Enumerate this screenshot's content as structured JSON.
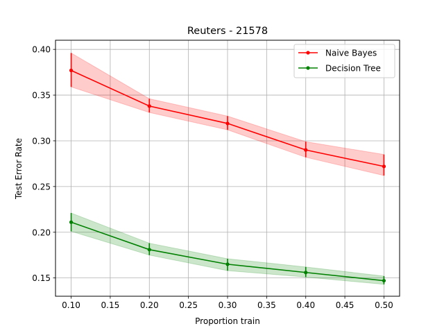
{
  "chart_data": {
    "type": "line",
    "title": "Reuters - 21578",
    "xlabel": "Proportion train",
    "ylabel": "Test Error Rate",
    "xlim": [
      0.08,
      0.52
    ],
    "ylim": [
      0.13,
      0.41
    ],
    "xticks": [
      "0.10",
      "0.15",
      "0.20",
      "0.25",
      "0.30",
      "0.35",
      "0.40",
      "0.45",
      "0.50"
    ],
    "yticks": [
      "0.15",
      "0.20",
      "0.25",
      "0.30",
      "0.35",
      "0.40"
    ],
    "grid": true,
    "legend_position": "top-right",
    "x": [
      0.1,
      0.2,
      0.3,
      0.4,
      0.5
    ],
    "series": [
      {
        "name": "Naive Bayes",
        "color": "#ff0000",
        "fill_color": "#ff0000",
        "values": [
          0.377,
          0.338,
          0.319,
          0.29,
          0.272
        ],
        "lower": [
          0.359,
          0.331,
          0.312,
          0.282,
          0.262
        ],
        "upper": [
          0.396,
          0.346,
          0.327,
          0.299,
          0.285
        ]
      },
      {
        "name": "Decision Tree",
        "color": "#008000",
        "fill_color": "#008000",
        "values": [
          0.211,
          0.181,
          0.165,
          0.156,
          0.147
        ],
        "lower": [
          0.201,
          0.175,
          0.158,
          0.151,
          0.143
        ],
        "upper": [
          0.221,
          0.188,
          0.171,
          0.162,
          0.152
        ]
      }
    ]
  }
}
